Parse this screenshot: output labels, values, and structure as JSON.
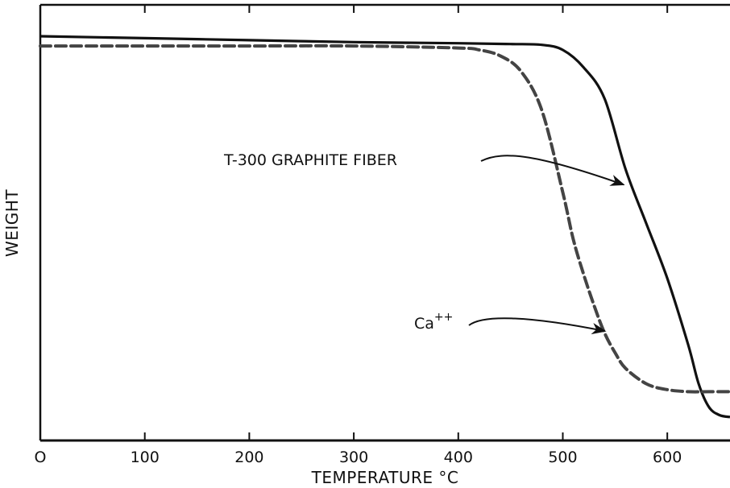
{
  "chart_data": {
    "type": "line",
    "xlabel": "TEMPERATURE °C",
    "ylabel": "WEIGHT",
    "xlim": [
      0,
      660
    ],
    "ylim": [
      0,
      100
    ],
    "x_ticks": [
      0,
      100,
      200,
      300,
      400,
      500,
      600
    ],
    "x_tick_labels": [
      "O",
      "100",
      "200",
      "300",
      "400",
      "500",
      "600"
    ],
    "grid": false,
    "legend": "none",
    "series": [
      {
        "name": "T-300 GRAPHITE FIBER",
        "style": "solid",
        "color": "#111111",
        "x": [
          0,
          100,
          200,
          300,
          400,
          450,
          480,
          500,
          520,
          540,
          560,
          580,
          600,
          620,
          630,
          640,
          650,
          660
        ],
        "y": [
          100,
          99.5,
          99,
          98.5,
          98.2,
          98,
          97.8,
          96.5,
          92,
          84,
          66,
          52,
          38,
          21,
          11,
          5,
          3,
          2.5
        ]
      },
      {
        "name": "Ca++",
        "style": "dashed",
        "color": "#444444",
        "x": [
          0,
          100,
          200,
          300,
          400,
          420,
          440,
          460,
          480,
          500,
          510,
          520,
          530,
          540,
          550,
          560,
          580,
          600,
          620,
          640,
          660
        ],
        "y": [
          97.5,
          97.5,
          97.5,
          97.5,
          97,
          96.5,
          95,
          91,
          81,
          60,
          48,
          39,
          31,
          24,
          19,
          15,
          11,
          9.5,
          9,
          9,
          9
        ]
      }
    ],
    "annotations": [
      {
        "text": "T-300 GRAPHITE FIBER",
        "series": "T-300 GRAPHITE FIBER",
        "x": 562,
        "y": 62
      },
      {
        "text": "Ca++",
        "base": "Ca",
        "sup": "++",
        "series": "Ca++",
        "x": 545,
        "y": 24.5
      }
    ]
  }
}
